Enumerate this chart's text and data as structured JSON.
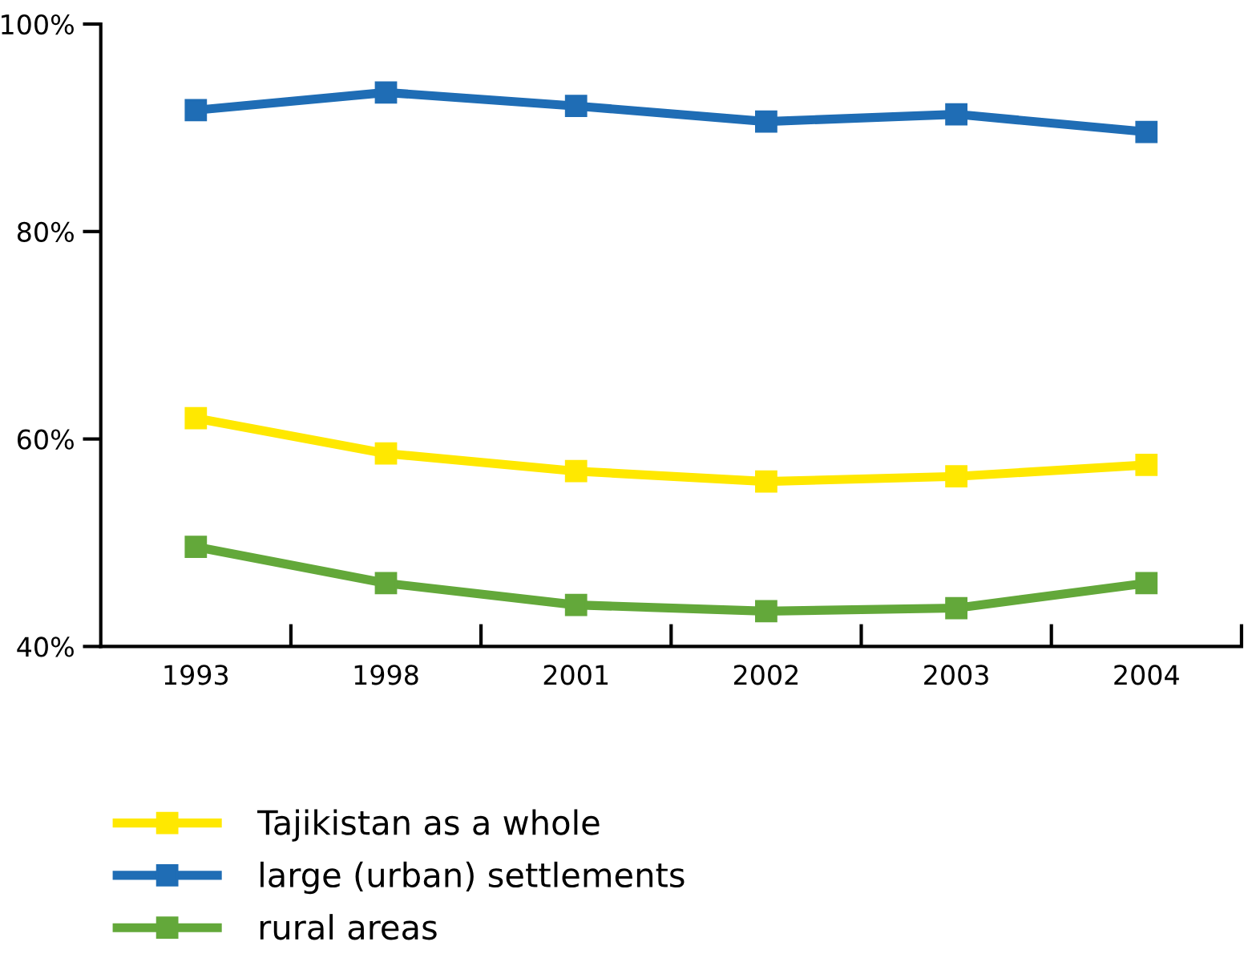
{
  "chart_data": {
    "type": "line",
    "categories": [
      "1993",
      "1998",
      "2001",
      "2002",
      "2003",
      "2004"
    ],
    "series": [
      {
        "name": "Tajikistan as a whole",
        "color": "#ffe800",
        "values": [
          62.0,
          58.6,
          56.9,
          55.9,
          56.4,
          57.5
        ]
      },
      {
        "name": "large (urban) settlements",
        "color": "#1f6db5",
        "values": [
          91.7,
          93.4,
          92.1,
          90.6,
          91.3,
          89.6
        ]
      },
      {
        "name": "rural areas",
        "color": "#63a83a",
        "values": [
          49.6,
          46.1,
          44.0,
          43.4,
          43.7,
          46.1
        ]
      }
    ],
    "ylim": [
      40,
      100
    ],
    "yticks": [
      {
        "value": 40,
        "label": "40%"
      },
      {
        "value": 60,
        "label": "60%"
      },
      {
        "value": 80,
        "label": "80%"
      },
      {
        "value": 100,
        "label": "100%"
      }
    ],
    "grid": false,
    "legend": "bottom left",
    "marker": "square",
    "line_style": "solid"
  }
}
